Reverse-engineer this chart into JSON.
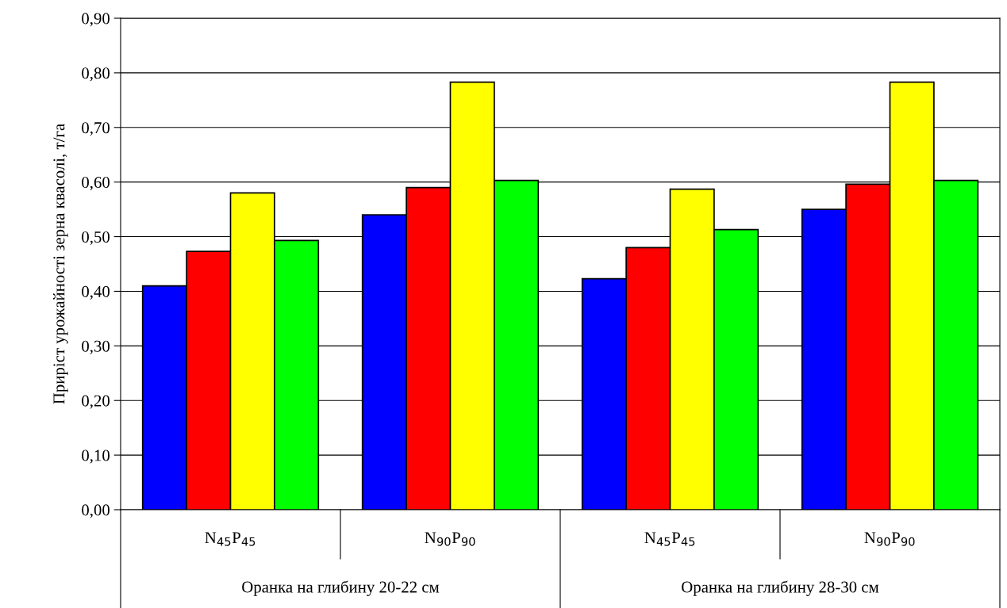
{
  "chart_data": {
    "type": "bar",
    "ylabel": "Приріст урожайності зерна квасолі, т/га",
    "categories": [
      "N$_{45}$P$_{45}$",
      "N$_{90}$P$_{90}$",
      "N$_{45}$P$_{45}$",
      "N$_{90}$P$_{90}$"
    ],
    "series": [
      {
        "color": "#0000ff",
        "values": [
          0.41,
          0.54,
          0.423,
          0.55
        ]
      },
      {
        "color": "#ff0000",
        "values": [
          0.473,
          0.59,
          0.48,
          0.596
        ]
      },
      {
        "color": "#ffff00",
        "values": [
          0.58,
          0.783,
          0.587,
          0.783
        ]
      },
      {
        "color": "#00ff00",
        "values": [
          0.493,
          0.603,
          0.513,
          0.603
        ]
      }
    ],
    "ylim": [
      0,
      0.9
    ],
    "yticks": [
      {
        "value": 0,
        "label": "0,00"
      },
      {
        "value": 0.1,
        "label": "0,10"
      },
      {
        "value": 0.2,
        "label": "0,20"
      },
      {
        "value": 0.3,
        "label": "0,30"
      },
      {
        "value": 0.4,
        "label": "0,40"
      },
      {
        "value": 0.5,
        "label": "0,50"
      },
      {
        "value": 0.6,
        "label": "0,60"
      },
      {
        "value": 0.7,
        "label": "0,70"
      },
      {
        "value": 0.8,
        "label": "0,80"
      },
      {
        "value": 0.9,
        "label": "0,90"
      }
    ],
    "grid": "y",
    "annotations": [
      "Оранка на глибину 20-22 см",
      "Оранка на глибину 28-30 см"
    ]
  }
}
